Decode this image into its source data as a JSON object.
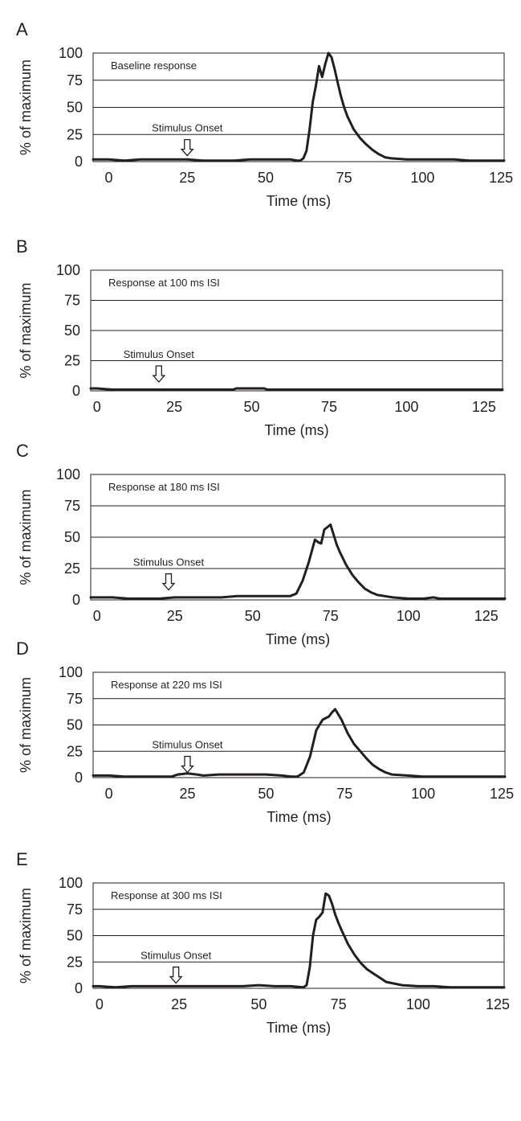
{
  "chart_data": [
    {
      "type": "line",
      "panel_label": "A",
      "annotation": "Baseline response",
      "marker": {
        "label": "Stimulus Onset",
        "x": 25
      },
      "xlabel": "Time (ms)",
      "ylabel": "% of maximum",
      "xticks": [
        0,
        25,
        50,
        75,
        100,
        125
      ],
      "yticks": [
        0,
        25,
        50,
        75,
        100
      ],
      "xlim": [
        -5,
        126
      ],
      "ylim": [
        0,
        100
      ],
      "grid": "horizontal",
      "series": [
        {
          "x": [
            -5,
            0,
            5,
            10,
            15,
            20,
            25,
            30,
            35,
            40,
            45,
            50,
            55,
            58,
            60,
            61,
            62,
            63,
            64,
            65,
            66,
            67,
            68,
            69,
            70,
            71,
            72,
            73,
            74,
            75,
            76,
            77,
            78,
            80,
            82,
            84,
            86,
            88,
            90,
            95,
            100,
            105,
            110,
            115,
            120,
            126
          ],
          "y": [
            2,
            2,
            1,
            2,
            2,
            2,
            2,
            1,
            1,
            1,
            2,
            2,
            2,
            2,
            1,
            1,
            3,
            10,
            30,
            55,
            70,
            88,
            78,
            90,
            100,
            96,
            85,
            72,
            60,
            50,
            42,
            36,
            30,
            22,
            16,
            11,
            7,
            4,
            3,
            2,
            2,
            2,
            2,
            1,
            1,
            1
          ]
        }
      ]
    },
    {
      "type": "line",
      "panel_label": "B",
      "annotation": "Response at 100 ms ISI",
      "marker": {
        "label": "Stimulus Onset",
        "x": 20
      },
      "xlabel": "Time (ms)",
      "ylabel": "% of maximum",
      "xticks": [
        0,
        25,
        50,
        75,
        100,
        125
      ],
      "yticks": [
        0,
        25,
        50,
        75,
        100
      ],
      "xlim": [
        -2,
        131
      ],
      "ylim": [
        0,
        100
      ],
      "grid": "horizontal",
      "series": [
        {
          "x": [
            -2,
            0,
            5,
            10,
            20,
            30,
            40,
            44,
            45,
            54,
            55,
            60,
            70,
            80,
            90,
            100,
            110,
            120,
            131
          ],
          "y": [
            2,
            2,
            1,
            1,
            1,
            1,
            1,
            1,
            2,
            2,
            1,
            1,
            1,
            1,
            1,
            1,
            1,
            1,
            1
          ]
        }
      ]
    },
    {
      "type": "line",
      "panel_label": "C",
      "annotation": "Response at 180 ms ISI",
      "marker": {
        "label": "Stimulus Onset",
        "x": 23
      },
      "xlabel": "Time (ms)",
      "ylabel": "% of maximum",
      "xticks": [
        0,
        25,
        50,
        75,
        100,
        125
      ],
      "yticks": [
        0,
        25,
        50,
        75,
        100
      ],
      "xlim": [
        -2,
        131
      ],
      "ylim": [
        0,
        100
      ],
      "grid": "horizontal",
      "series": [
        {
          "x": [
            -2,
            0,
            5,
            10,
            15,
            20,
            25,
            30,
            35,
            40,
            45,
            50,
            55,
            60,
            62,
            64,
            66,
            68,
            70,
            71,
            72,
            73,
            74,
            75,
            76,
            77,
            78,
            80,
            82,
            84,
            86,
            88,
            90,
            95,
            100,
            105,
            108,
            110,
            115,
            120,
            131
          ],
          "y": [
            2,
            2,
            2,
            1,
            1,
            1,
            2,
            2,
            2,
            2,
            3,
            3,
            3,
            3,
            3,
            5,
            15,
            30,
            48,
            46,
            45,
            56,
            58,
            60,
            52,
            44,
            38,
            28,
            20,
            14,
            9,
            6,
            4,
            2,
            1,
            1,
            2,
            1,
            1,
            1,
            1
          ]
        }
      ]
    },
    {
      "type": "line",
      "panel_label": "D",
      "annotation": "Response at 220 ms ISI",
      "marker": {
        "label": "Stimulus Onset",
        "x": 25
      },
      "xlabel": "Time (ms)",
      "ylabel": "% of maximum",
      "xticks": [
        0,
        25,
        50,
        75,
        100,
        125
      ],
      "yticks": [
        0,
        25,
        50,
        75,
        100
      ],
      "xlim": [
        -5,
        126
      ],
      "ylim": [
        0,
        100
      ],
      "grid": "horizontal",
      "series": [
        {
          "x": [
            -5,
            0,
            5,
            10,
            15,
            20,
            22,
            25,
            28,
            30,
            35,
            40,
            45,
            50,
            55,
            58,
            60,
            62,
            64,
            66,
            68,
            70,
            71,
            72,
            74,
            76,
            78,
            80,
            82,
            84,
            86,
            88,
            90,
            95,
            100,
            105,
            110,
            115,
            126
          ],
          "y": [
            2,
            2,
            1,
            1,
            1,
            1,
            3,
            4,
            3,
            2,
            3,
            3,
            3,
            3,
            2,
            1,
            1,
            5,
            20,
            45,
            55,
            58,
            62,
            65,
            55,
            42,
            32,
            25,
            18,
            12,
            8,
            5,
            3,
            2,
            1,
            1,
            1,
            1,
            1
          ]
        }
      ]
    },
    {
      "type": "line",
      "panel_label": "E",
      "annotation": "Response at 300 ms ISI",
      "marker": {
        "label": "Stimulus Onset",
        "x": 24
      },
      "xlabel": "Time (ms)",
      "ylabel": "% of maximum",
      "xticks": [
        0,
        25,
        50,
        75,
        100,
        125
      ],
      "yticks": [
        0,
        25,
        50,
        75,
        100
      ],
      "xlim": [
        -2,
        127
      ],
      "ylim": [
        0,
        100
      ],
      "grid": "horizontal",
      "series": [
        {
          "x": [
            -2,
            0,
            5,
            10,
            15,
            20,
            25,
            30,
            35,
            40,
            45,
            50,
            55,
            60,
            64,
            65,
            66,
            67,
            68,
            69,
            70,
            71,
            72,
            73,
            74,
            75,
            76,
            78,
            80,
            82,
            84,
            86,
            88,
            90,
            95,
            100,
            105,
            110,
            115,
            127
          ],
          "y": [
            2,
            2,
            1,
            2,
            2,
            2,
            2,
            2,
            2,
            2,
            2,
            3,
            2,
            2,
            1,
            3,
            20,
            50,
            65,
            68,
            72,
            90,
            88,
            80,
            70,
            62,
            55,
            42,
            32,
            24,
            18,
            14,
            10,
            6,
            3,
            2,
            2,
            1,
            1,
            1
          ]
        }
      ]
    }
  ]
}
